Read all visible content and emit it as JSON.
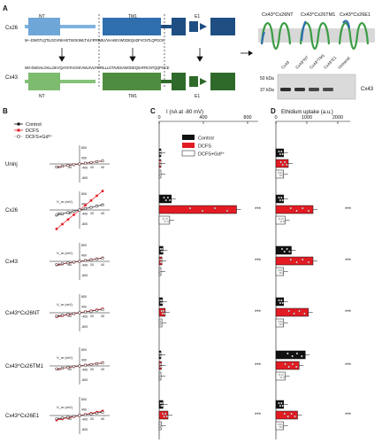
{
  "panel_letters": {
    "a": "A",
    "b": "B",
    "c": "C",
    "d": "D"
  },
  "panel_a": {
    "cx26_label": "Cx26",
    "cx43_label": "Cx43",
    "domains": [
      "NT",
      "TM1",
      "E1"
    ],
    "cx26_seq": "M---DWGTLQTILGGVNKHSTSIGKIWLTVLFIFRIMILVVAAKEVWGDEQADFVCNTLQPGCK",
    "cx43_seq": "MG-DWSALGKLLDKVQAYSTAGGKVWLSVLFIFRILLLGTAVESAWGDEQSAFRCNTQQPGCE",
    "topology_labels": [
      "Cx43^Cx26NT",
      "Cx43^Cx26TM1",
      "Cx43^Cx26E1"
    ],
    "blot_lanes": [
      "Cx43",
      "Cx43^NT",
      "Cx43^TM1",
      "Cx43^E1",
      "Untransf."
    ],
    "kda": [
      "50 kDa",
      "37 kDa"
    ],
    "blot_label": "Cx43",
    "blot_intensity": [
      0.95,
      0.9,
      0.75,
      0.7,
      0.0
    ]
  },
  "panel_b": {
    "legend": [
      "Control",
      "DCFS",
      "DCFS+Gd³⁺"
    ],
    "rows": [
      "Uninj",
      "Cx26",
      "Cx43",
      "Cx43^Cx26NT",
      "Cx43^Cx26TM1",
      "Cx43^Cx26E1"
    ],
    "vm_text": "V_m (mV)",
    "x_ticks": [
      "-80",
      "-40",
      "20",
      "40"
    ],
    "y_ticks": [
      "800",
      "400",
      "-400",
      "-800"
    ]
  },
  "panel_c": {
    "title": "I (nA at -80 mV)",
    "axis_ticks": [
      "0",
      "400",
      "800"
    ],
    "legend": [
      "Control",
      "DCFS",
      "DCFS+Gd³⁺"
    ],
    "colors": {
      "control": "#111111",
      "dcfs": "#e31b23",
      "gd": "#ffffff"
    },
    "axis_max": 800
  },
  "panel_d": {
    "title": "Ethidium uptake (a.u.)",
    "axis_ticks": [
      "0",
      "1000",
      "2000"
    ],
    "axis_max": 2000
  },
  "significance": "***",
  "chart_data": [
    {
      "type": "bar",
      "title": "I (nA at -80 mV)",
      "categories": [
        "Uninj",
        "Cx26",
        "Cx43",
        "Cx43^Cx26NT",
        "Cx43^Cx26TM1",
        "Cx43^Cx26E1"
      ],
      "series": [
        {
          "name": "Control",
          "values": [
            15,
            110,
            35,
            30,
            15,
            35
          ]
        },
        {
          "name": "DCFS",
          "values": [
            15,
            700,
            25,
            55,
            20,
            80
          ]
        },
        {
          "name": "DCFS+Gd³⁺",
          "values": [
            15,
            95,
            15,
            25,
            10,
            20
          ]
        }
      ],
      "xlim": [
        0,
        800
      ]
    },
    {
      "type": "bar",
      "title": "Ethidium uptake (a.u.)",
      "categories": [
        "Uninj",
        "Cx26",
        "Cx43",
        "Cx43^Cx26NT",
        "Cx43^Cx26TM1",
        "Cx43^Cx26E1"
      ],
      "series": [
        {
          "name": "Control",
          "values": [
            250,
            250,
            500,
            250,
            950,
            250
          ]
        },
        {
          "name": "DCFS",
          "values": [
            400,
            1200,
            1200,
            1050,
            750,
            700
          ]
        },
        {
          "name": "DCFS+Gd³⁺",
          "values": [
            250,
            300,
            250,
            250,
            300,
            250
          ]
        }
      ],
      "xlim": [
        0,
        2000
      ]
    }
  ]
}
